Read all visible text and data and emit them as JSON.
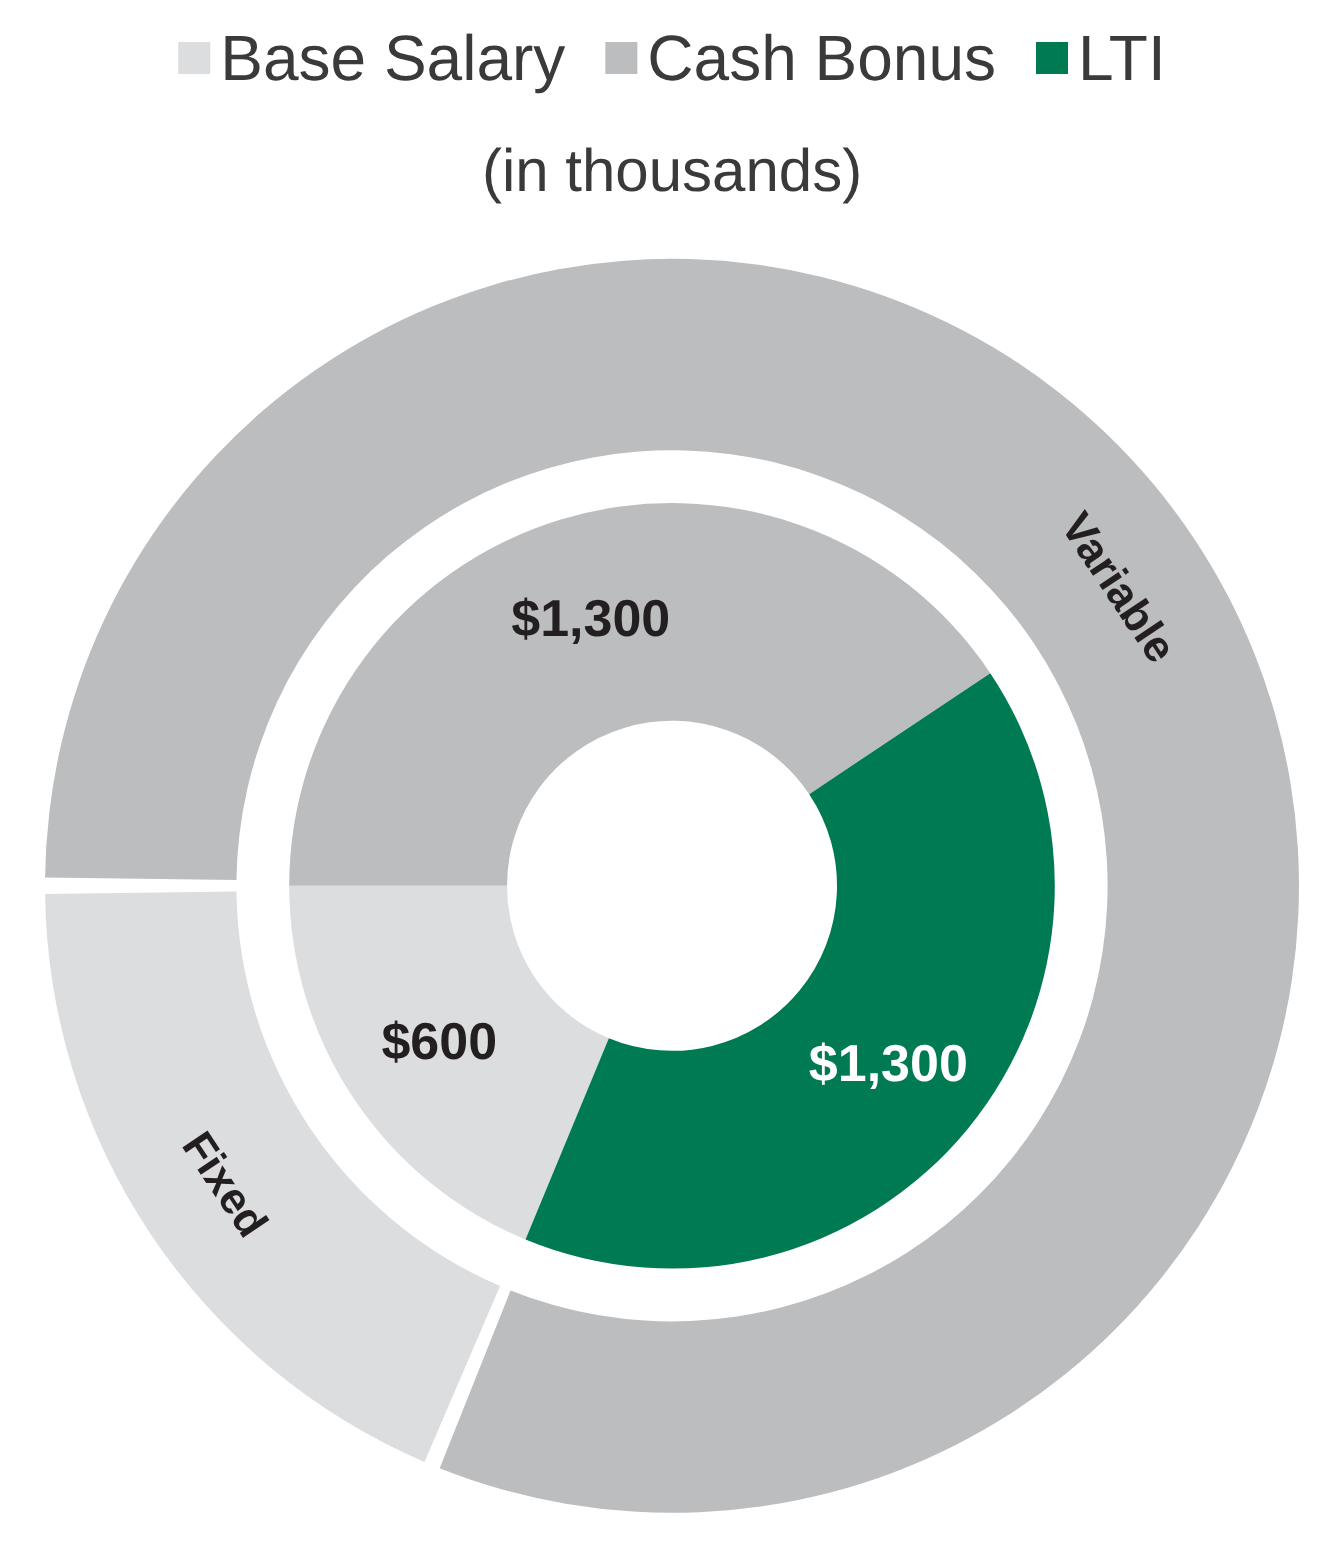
{
  "chart_data": [
    {
      "type": "donut",
      "subtitle": "(in thousands)",
      "legend": "top",
      "categories": [
        "Base Salary",
        "Cash Bonus",
        "LTI"
      ],
      "values": [
        600,
        1300,
        1300
      ],
      "colors": [
        "#dcdddf",
        "#bcbdbf",
        "#007a53"
      ],
      "value_labels": [
        "$600",
        "$1,300",
        "$1,300"
      ]
    },
    {
      "type": "donut",
      "categories": [
        "Fixed",
        "Variable"
      ],
      "values": [
        18.75,
        81.25
      ],
      "colors": [
        "#dcdddf",
        "#bcbdbf"
      ]
    }
  ]
}
